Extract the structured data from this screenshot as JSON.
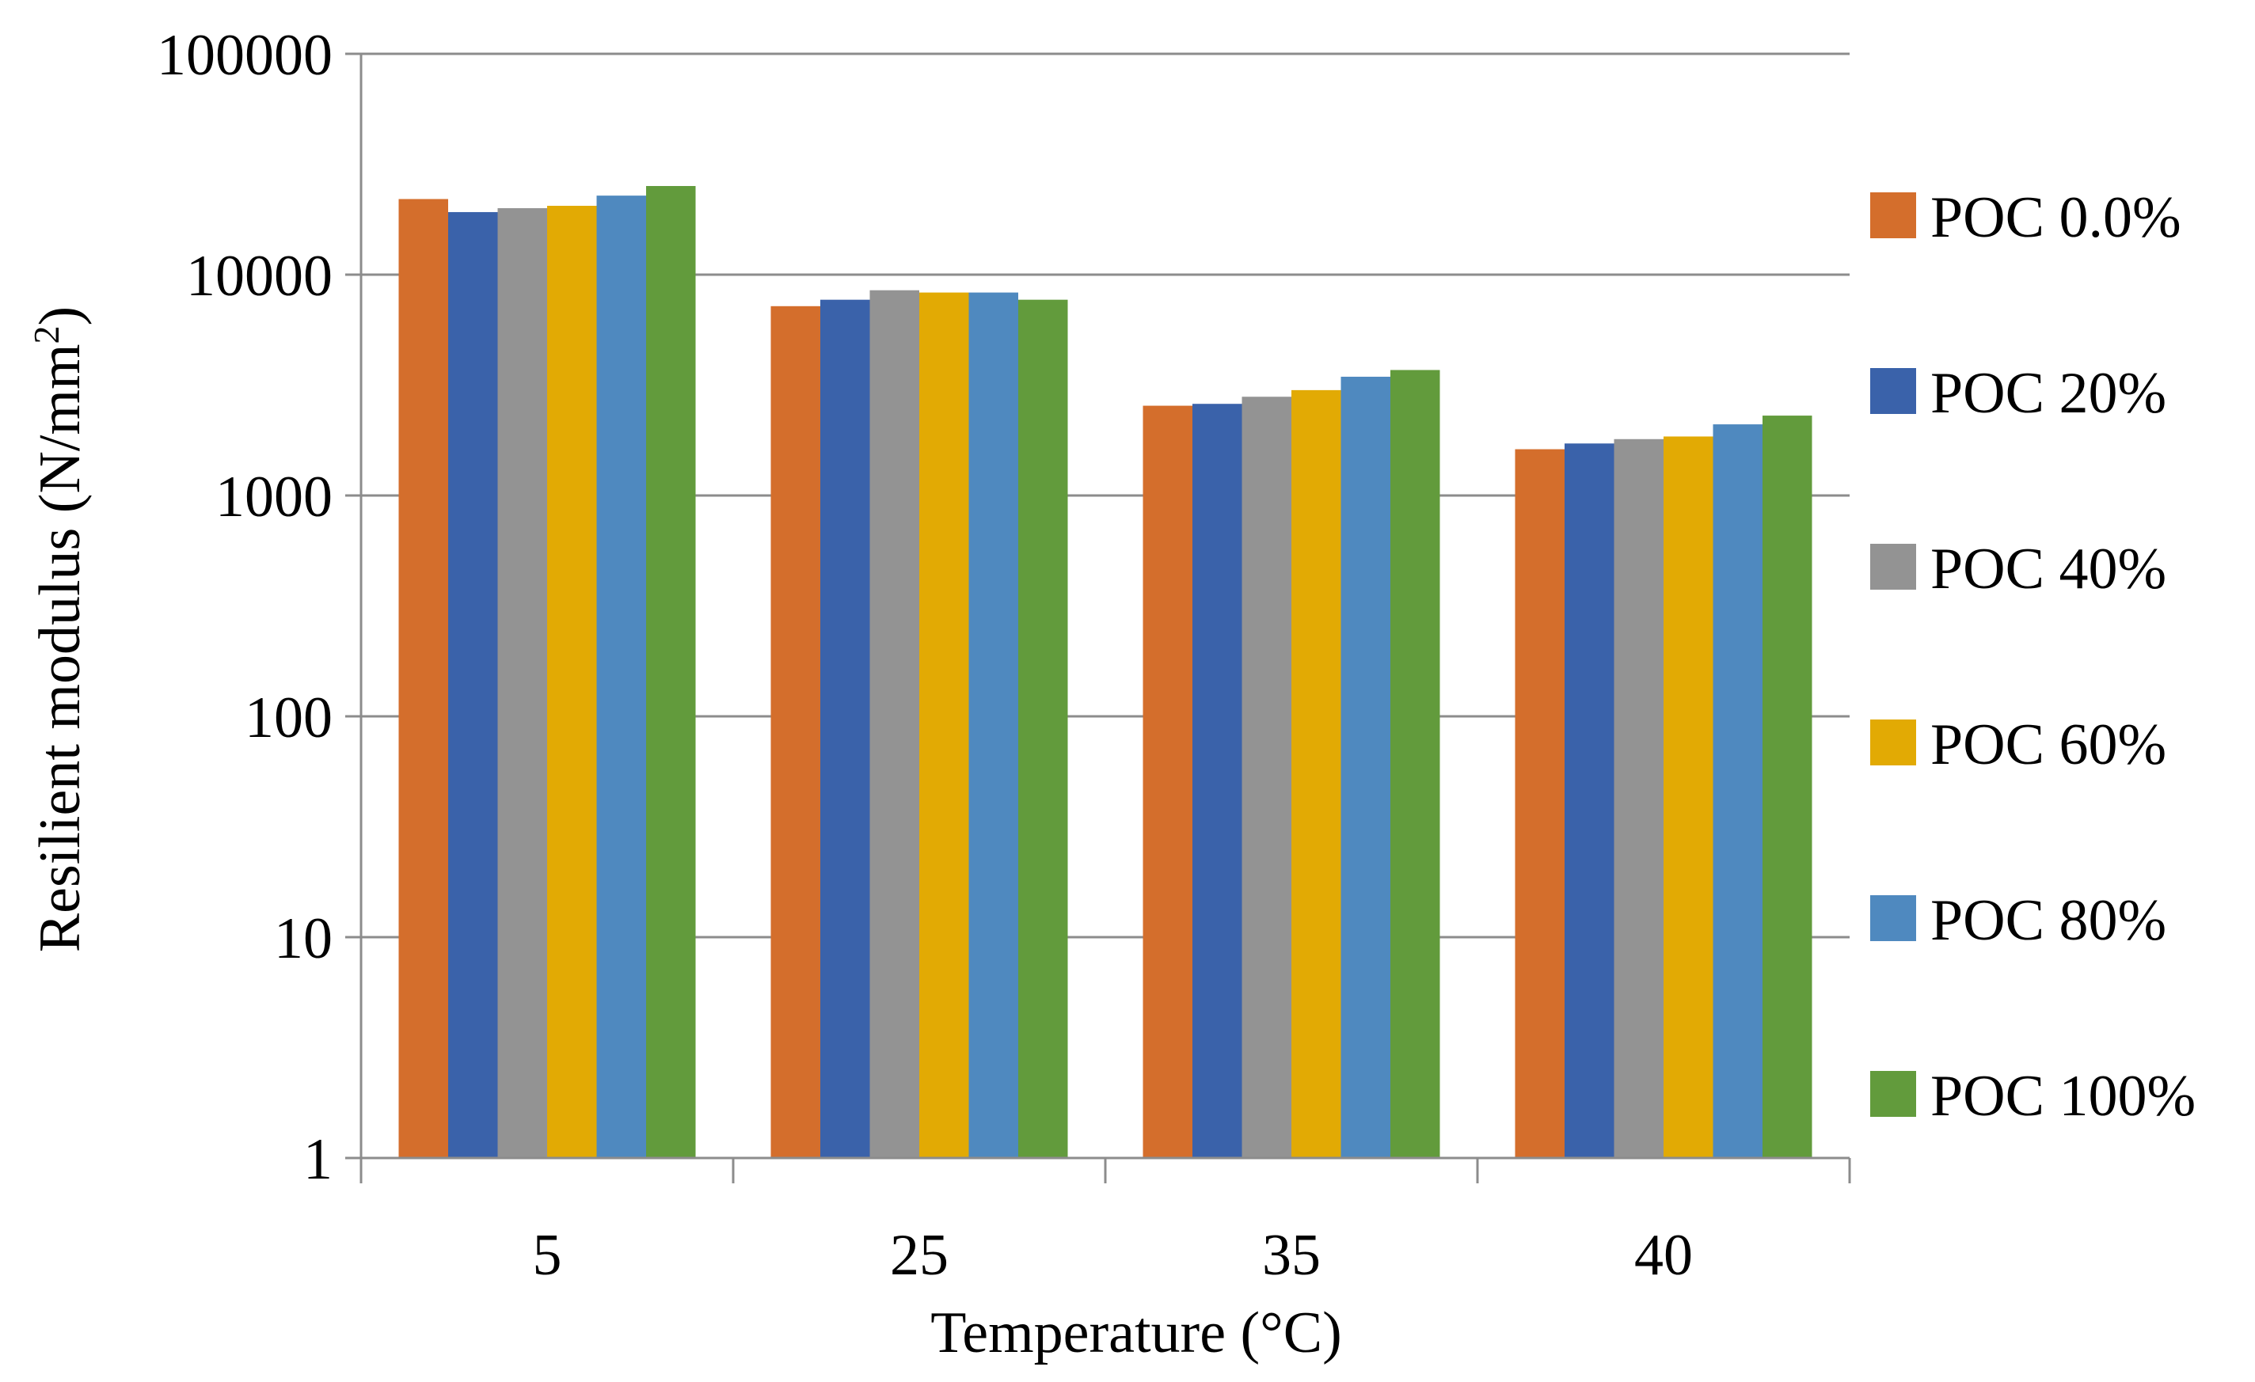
{
  "chart_data": {
    "type": "bar",
    "title": "",
    "xlabel": "Temperature (°C)",
    "ylabel": "Resilient modulus (N/mm",
    "ylabel_superscript": "2",
    "ylabel_close": ")",
    "yscale": "log",
    "ylim": [
      1,
      100000
    ],
    "yticks": [
      1,
      10,
      100,
      1000,
      10000,
      100000
    ],
    "ytick_labels": [
      "1",
      "10",
      "100",
      "1000",
      "10000",
      "100000"
    ],
    "grid": true,
    "legend_position": "right",
    "categories": [
      "5",
      "25",
      "35",
      "40"
    ],
    "series": [
      {
        "name": "POC 0.0%",
        "color": "#D46E2C",
        "values": [
          22000,
          7200,
          2550,
          1620
        ]
      },
      {
        "name": "POC 20%",
        "color": "#3A62AA",
        "values": [
          19200,
          7700,
          2600,
          1720
        ]
      },
      {
        "name": "POC 40%",
        "color": "#939393",
        "values": [
          20000,
          8500,
          2800,
          1800
        ]
      },
      {
        "name": "POC 60%",
        "color": "#E2AA04",
        "values": [
          20500,
          8300,
          3000,
          1850
        ]
      },
      {
        "name": "POC 80%",
        "color": "#4F89BF",
        "values": [
          22800,
          8300,
          3450,
          2100
        ]
      },
      {
        "name": "POC 100%",
        "color": "#629B3C",
        "values": [
          25200,
          7700,
          3700,
          2300
        ]
      }
    ]
  }
}
